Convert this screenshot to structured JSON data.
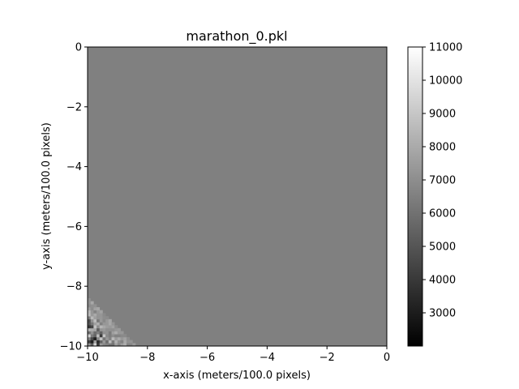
{
  "chart_data": {
    "type": "heatmap",
    "title": "marathon_0.pkl",
    "xlabel": "x-axis (meters/100.0 pixels)",
    "ylabel": "y-axis (meters/100.0 pixels)",
    "xlim": [
      -10,
      0
    ],
    "ylim": [
      -10,
      0
    ],
    "xticks": [
      -10,
      -8,
      -6,
      -4,
      -2,
      0
    ],
    "yticks": [
      0,
      -2,
      -4,
      -6,
      -8,
      -10
    ],
    "xtick_labels": [
      "−10",
      "−8",
      "−6",
      "−4",
      "−2",
      "0"
    ],
    "ytick_labels": [
      "0",
      "−2",
      "−4",
      "−6",
      "−8",
      "−10"
    ],
    "background_value": 6500,
    "colormap": "gray",
    "grid": false,
    "colorbar": {
      "min": 2000,
      "max": 11000,
      "ticks": [
        3000,
        4000,
        5000,
        6000,
        7000,
        8000,
        9000,
        10000,
        11000
      ],
      "tick_labels": [
        "3000",
        "4000",
        "5000",
        "6000",
        "7000",
        "8000",
        "9000",
        "10000",
        "11000"
      ]
    },
    "noise_region": {
      "corner": "bottom-left",
      "cell_size": 0.1,
      "diagonal_extent": 1.6,
      "value_range": [
        2000,
        11000
      ]
    }
  }
}
